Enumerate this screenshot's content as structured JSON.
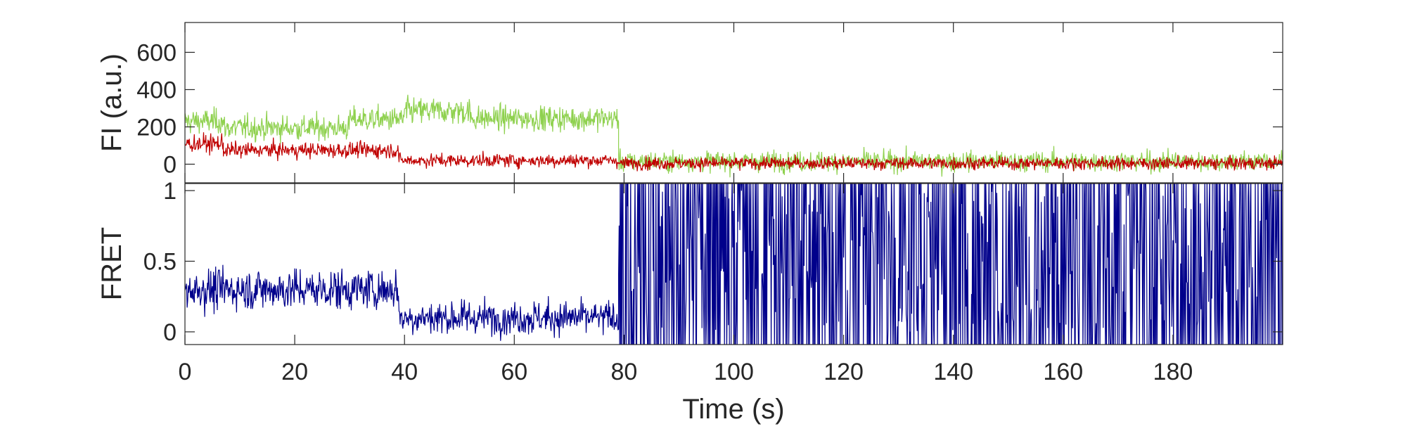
{
  "chart_data": {
    "type": "line",
    "shared_x_axis": {
      "xlabel": "Time (s)",
      "xlim": [
        0,
        200
      ],
      "xticks": [
        0,
        20,
        40,
        60,
        80,
        100,
        120,
        140,
        160,
        180
      ]
    },
    "panels": [
      {
        "ylabel": "FI (a.u.)",
        "ylim": [
          -100,
          760
        ],
        "yticks": [
          0,
          200,
          400,
          600
        ],
        "series": [
          {
            "color": "#8fd14f",
            "segments": [
              {
                "x_start": 0,
                "x_end": 7,
                "mean": 230,
                "noise": 55
              },
              {
                "x_start": 7,
                "x_end": 30,
                "mean": 195,
                "noise": 55
              },
              {
                "x_start": 30,
                "x_end": 40,
                "mean": 240,
                "noise": 55
              },
              {
                "x_start": 40,
                "x_end": 52,
                "mean": 285,
                "noise": 60
              },
              {
                "x_start": 52,
                "x_end": 79,
                "mean": 245,
                "noise": 55
              },
              {
                "x_start": 79,
                "x_end": 200,
                "mean": 15,
                "noise": 45
              }
            ]
          },
          {
            "color": "#c00000",
            "segments": [
              {
                "x_start": 0,
                "x_end": 7,
                "mean": 110,
                "noise": 40
              },
              {
                "x_start": 7,
                "x_end": 39,
                "mean": 75,
                "noise": 35
              },
              {
                "x_start": 39,
                "x_end": 79,
                "mean": 20,
                "noise": 30
              },
              {
                "x_start": 79,
                "x_end": 200,
                "mean": 5,
                "noise": 28
              }
            ]
          }
        ]
      },
      {
        "ylabel": "FRET",
        "ylim": [
          -0.09,
          1.05
        ],
        "yticks": [
          0,
          0.5,
          1
        ],
        "series": [
          {
            "color": "#00008b",
            "segments": [
              {
                "x_start": 0,
                "x_end": 39,
                "mean": 0.3,
                "noise": 0.12
              },
              {
                "x_start": 39,
                "x_end": 79,
                "mean": 0.1,
                "noise": 0.1
              },
              {
                "x_start": 79,
                "x_end": 200,
                "mean": 0.45,
                "noise": 0.45
              }
            ]
          }
        ]
      }
    ]
  }
}
